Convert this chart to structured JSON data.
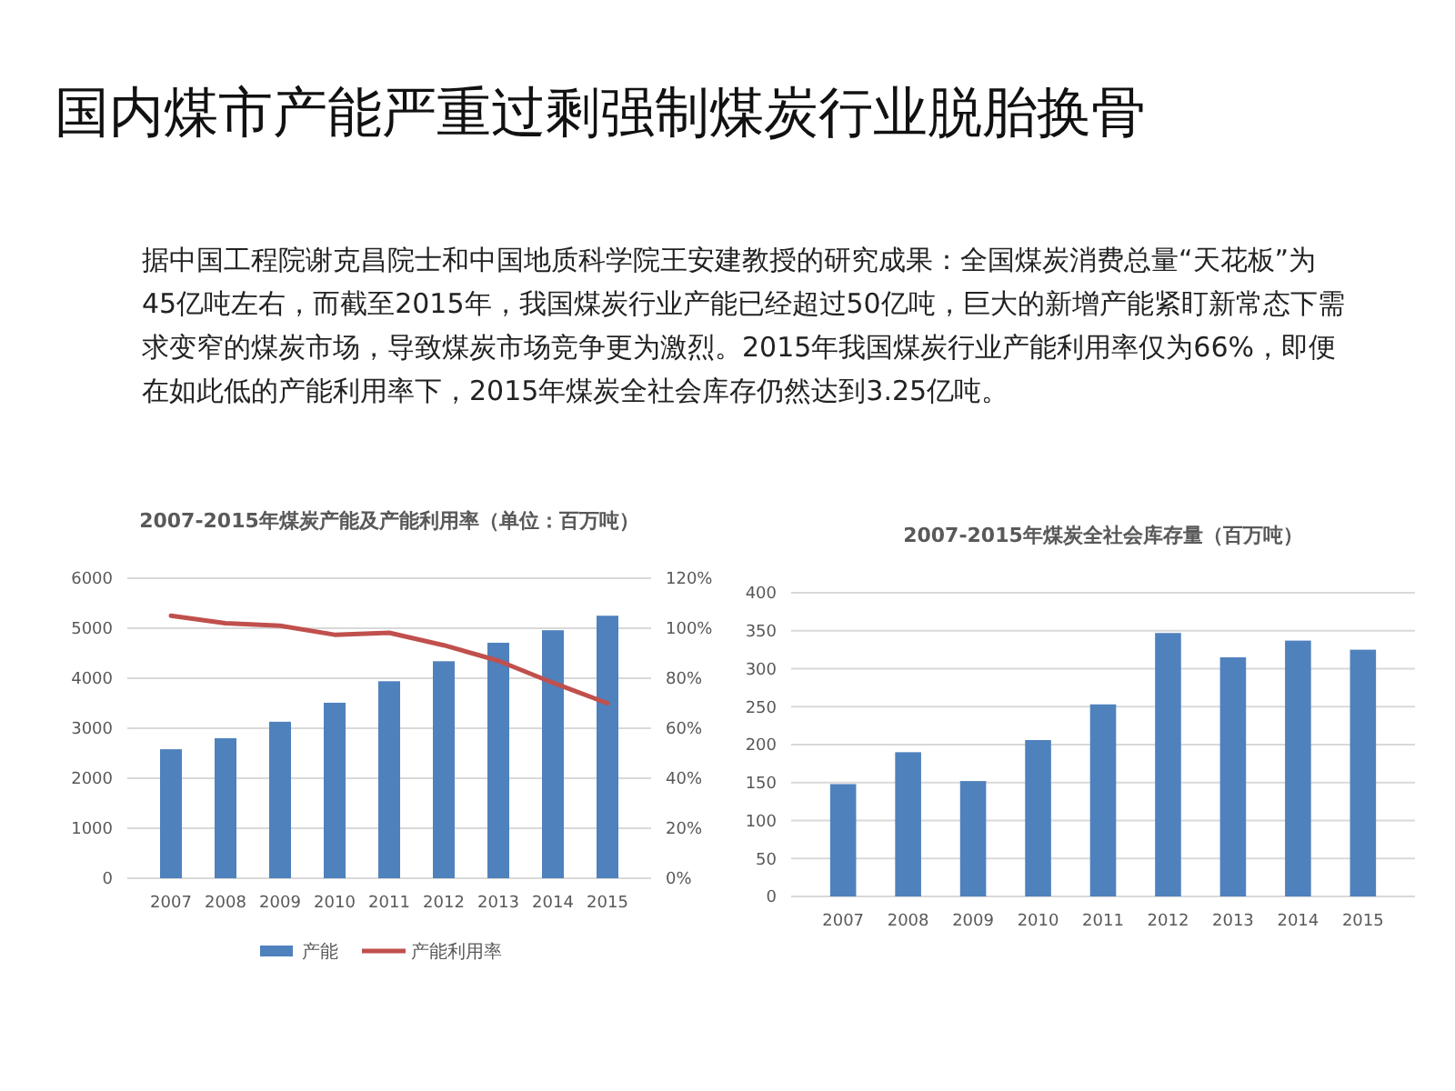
{
  "chart_data": [
    {
      "type": "other",
      "title": "国内煤市产能严重过剩强制煤炭行业脱胎换骨",
      "annotations": [
        "据中国工程院谢克昌院士和中国地质科学院王安建教授的研究成果：全国煤炭消费总量“天花板”为45亿吨左右，而截至2015年，我国煤炭行业产能已经超过50亿吨，巨大的新增产能紧盯新常态下需求变窄的煤炭市场，导致煤炭市场竞争更为激烈。2015年我国煤炭行业产能利用率仅为66%，即便在如此低的产能利用率下，2015年煤炭全社会库存仍然达到3.25亿吨。"
      ]
    },
    {
      "type": "bar",
      "title": "2007-2015年煤炭产能及产能利用率（单位：百万吨）",
      "categories": [
        "2007",
        "2008",
        "2009",
        "2010",
        "2011",
        "2012",
        "2013",
        "2014",
        "2015"
      ],
      "series": [
        {
          "name": "产能",
          "color": "#4f81bd",
          "values": [
            2580,
            2800,
            3130,
            3510,
            3940,
            4340,
            4710,
            4960,
            5250
          ]
        },
        {
          "name": "产能利用率",
          "type": "line",
          "axis": "y2",
          "color": "#c0504d",
          "values": [
            105,
            102,
            101,
            97.4,
            98.2,
            93.2,
            87,
            78.2,
            70
          ]
        }
      ],
      "ylim": [
        0,
        6000
      ],
      "yticks": [
        0,
        1000,
        2000,
        3000,
        4000,
        5000,
        6000
      ],
      "y2lim": [
        0,
        120
      ],
      "y2ticks": [
        {
          "value": 0,
          "label": "0%"
        },
        {
          "value": 20,
          "label": "20%"
        },
        {
          "value": 40,
          "label": "40%"
        },
        {
          "value": 60,
          "label": "60%"
        },
        {
          "value": 80,
          "label": "80%"
        },
        {
          "value": 100,
          "label": "100%"
        },
        {
          "value": 120,
          "label": "120%"
        }
      ],
      "grid": "y",
      "legend": "bottom"
    },
    {
      "type": "bar",
      "title": "2007-2015年煤炭全社会库存量（百万吨）",
      "categories": [
        "2007",
        "2008",
        "2009",
        "2010",
        "2011",
        "2012",
        "2013",
        "2014",
        "2015"
      ],
      "series": [
        {
          "color": "#4f81bd",
          "values": [
            148,
            190,
            152,
            206,
            253,
            347,
            315,
            337,
            325
          ]
        }
      ],
      "ylim": [
        0,
        400
      ],
      "yticks": [
        0,
        50,
        100,
        150,
        200,
        250,
        300,
        350,
        400
      ],
      "grid": "y"
    }
  ]
}
